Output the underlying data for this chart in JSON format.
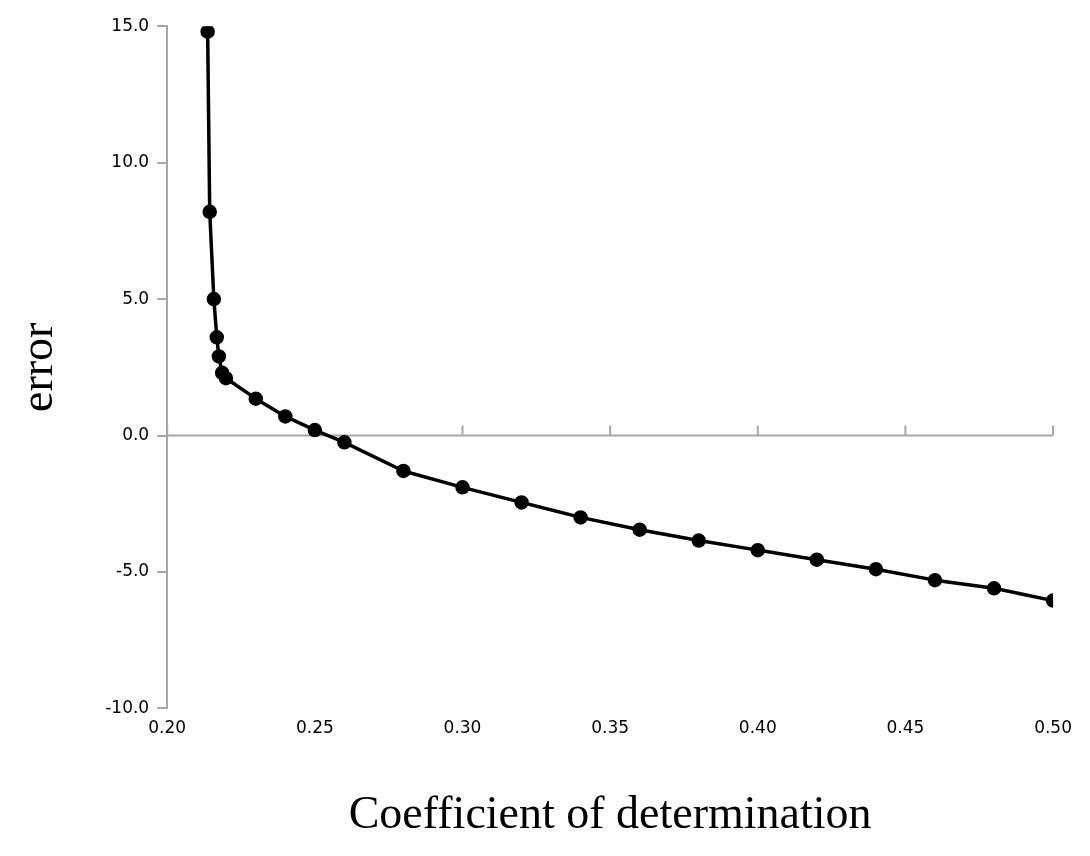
{
  "chart_data": {
    "type": "line",
    "xlabel": "Coefficient of determination",
    "ylabel": "error",
    "series": [
      {
        "color": "#000000",
        "x": [
          0.2137,
          0.2144,
          0.2158,
          0.2168,
          0.2175,
          0.2186,
          0.2199,
          0.23,
          0.24,
          0.25,
          0.26,
          0.28,
          0.3,
          0.32,
          0.34,
          0.36,
          0.38,
          0.4,
          0.42,
          0.44,
          0.46,
          0.48,
          0.5
        ],
        "values": [
          14.8,
          8.2,
          5.0,
          3.6,
          2.9,
          2.3,
          2.1,
          1.35,
          0.7,
          0.2,
          -0.25,
          -1.3,
          -1.9,
          -2.45,
          -3.0,
          -3.45,
          -3.85,
          -4.2,
          -4.55,
          -4.9,
          -5.3,
          -5.6,
          -6.05
        ]
      }
    ],
    "xlim": [
      0.2,
      0.5
    ],
    "xticks": [
      {
        "value": 0.2,
        "label": "0.20"
      },
      {
        "value": 0.25,
        "label": "0.25"
      },
      {
        "value": 0.3,
        "label": "0.30"
      },
      {
        "value": 0.35,
        "label": "0.35"
      },
      {
        "value": 0.4,
        "label": "0.40"
      },
      {
        "value": 0.45,
        "label": "0.45"
      },
      {
        "value": 0.5,
        "label": "0.50"
      }
    ],
    "ylim": [
      -10,
      15
    ],
    "yticks": [
      {
        "value": -10,
        "label": "-10.0"
      },
      {
        "value": -5,
        "label": "-5.0"
      },
      {
        "value": 0,
        "label": "0.0"
      },
      {
        "value": 5,
        "label": "5.0"
      },
      {
        "value": 10,
        "label": "10.0"
      },
      {
        "value": 15,
        "label": "15.0"
      }
    ],
    "ref_lines": [
      {
        "axis": "y",
        "value": 0,
        "color": "#a6a6a6"
      }
    ],
    "marker": "circle",
    "line_style": "solid",
    "grid": false,
    "legend": false
  }
}
